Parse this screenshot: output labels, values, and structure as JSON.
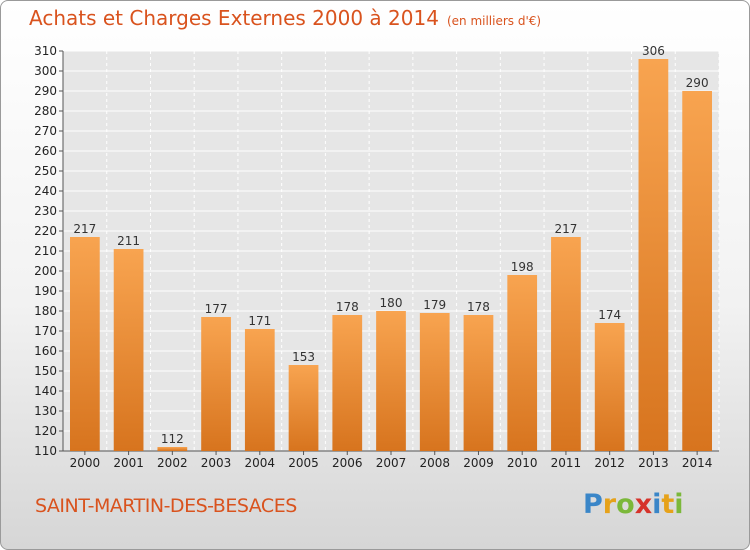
{
  "page": {
    "title": "Achats et Charges Externes 2000 à 2014",
    "unit_note": "(en milliers d'€)",
    "location": "SAINT-MARTIN-DES-BESACES",
    "logo": {
      "text": "Proxiti",
      "letters": [
        {
          "ch": "P",
          "color": "#3a86c8"
        },
        {
          "ch": "r",
          "color": "#e6a21a"
        },
        {
          "ch": "o",
          "color": "#7bb83a"
        },
        {
          "ch": "x",
          "color": "#d6332b"
        },
        {
          "ch": "i",
          "color": "#3a86c8"
        },
        {
          "ch": "t",
          "color": "#e6a21a"
        },
        {
          "ch": "i",
          "color": "#7bb83a"
        }
      ]
    },
    "colors": {
      "bar_top": "#f8a450",
      "bar_bottom": "#d7741e",
      "accent": "#d9531e"
    }
  },
  "chart_data": {
    "type": "bar",
    "title": "Achats et Charges Externes 2000 à 2014",
    "categories": [
      "2000",
      "2001",
      "2002",
      "2003",
      "2004",
      "2005",
      "2006",
      "2007",
      "2008",
      "2009",
      "2010",
      "2011",
      "2012",
      "2013",
      "2014"
    ],
    "values": [
      217,
      211,
      112,
      177,
      171,
      153,
      178,
      180,
      179,
      178,
      198,
      217,
      174,
      306,
      290
    ],
    "ylim": [
      110,
      310
    ],
    "yticks": [
      110,
      120,
      130,
      140,
      150,
      160,
      170,
      180,
      190,
      200,
      210,
      220,
      230,
      240,
      250,
      260,
      270,
      280,
      290,
      300,
      310
    ],
    "grid": true,
    "xlabel": "",
    "ylabel": ""
  }
}
